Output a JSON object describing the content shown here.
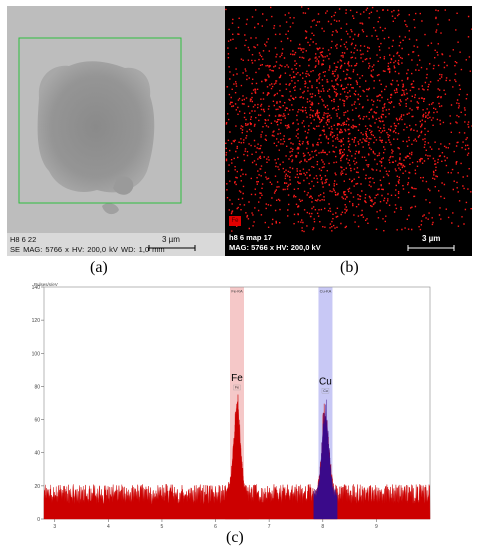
{
  "panel_a": {
    "sample": "H8 6 22",
    "mode": "SE",
    "mag": "MAG: 5766 x",
    "hv": "HV: 200,0 kV",
    "wd": "WD: 1,0 mm",
    "scale": "3 µm"
  },
  "panel_b": {
    "sample": "h8 6 map 17",
    "mag_hv": "MAG: 5766 x  HV: 200,0 kV",
    "scale": "3 µm",
    "element_badge": "Fe",
    "map_color": "#ff1a1a"
  },
  "labels": {
    "a": "(a)",
    "b": "(b)",
    "c": "(c)"
  },
  "chart_data": {
    "type": "area",
    "ylabel": "Pulses/s/eV",
    "yticks": [
      0,
      20,
      40,
      60,
      80,
      100,
      120,
      140
    ],
    "xticks": [
      3,
      4,
      5,
      6,
      7,
      8,
      9
    ],
    "xlim": [
      2.8,
      10.0
    ],
    "ylim": [
      0,
      140
    ],
    "background_level": 15,
    "peaks": [
      {
        "element": "Fe",
        "line": "Fe-KA",
        "energy": 6.4,
        "height": 70,
        "band_color": "#f5c8c8",
        "fill": "#cc0000",
        "annotation": "Fe"
      },
      {
        "element": "Cu",
        "line": "Cu-KA",
        "energy": 8.05,
        "height": 68,
        "band_color": "#c8c8f5",
        "fill": "#3a0a8a",
        "annotation": "Cu"
      }
    ],
    "spectrum_color": "#cc0000"
  }
}
